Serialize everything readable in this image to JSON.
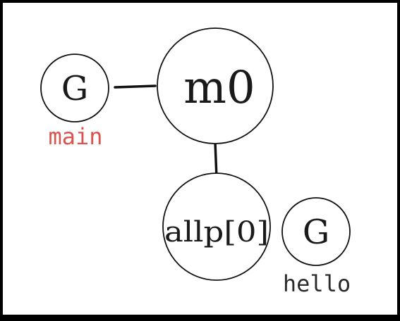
{
  "nodes": {
    "g_main": {
      "text": "G",
      "caption": "main"
    },
    "m0": {
      "text": "m0"
    },
    "allp": {
      "text": "allp[0]"
    },
    "g_hello": {
      "text": "G",
      "caption": "hello"
    }
  },
  "colors": {
    "background": "#ffffff",
    "border": "#000000",
    "stroke": "#111111",
    "text": "#1a1a1a",
    "caption_main": "#d9534f",
    "caption_hello": "#2b2b2b"
  }
}
